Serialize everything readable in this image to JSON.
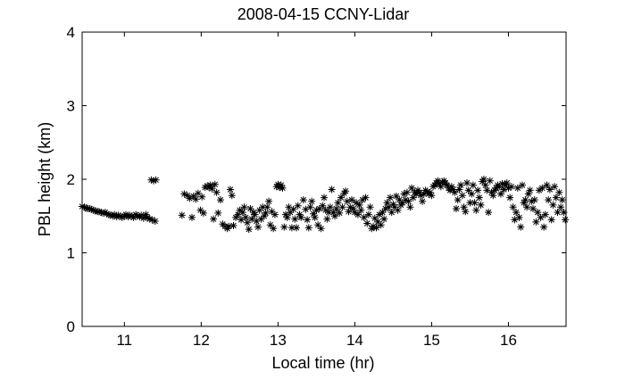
{
  "chart_data": {
    "type": "scatter",
    "title": "2008-04-15 CCNY-Lidar",
    "xlabel": "Local time (hr)",
    "ylabel": "PBL height (km)",
    "xlim": [
      10.45,
      16.75
    ],
    "ylim": [
      0,
      4
    ],
    "xticks": [
      "11",
      "12",
      "13",
      "14",
      "15",
      "16"
    ],
    "yticks": [
      "0",
      "1",
      "2",
      "3",
      "4"
    ],
    "marker": "asterisk",
    "color": "#000000",
    "grid": false,
    "series": [
      {
        "points": [
          [
            10.45,
            1.63
          ],
          [
            10.48,
            1.62
          ],
          [
            10.5,
            1.61
          ],
          [
            10.52,
            1.6
          ],
          [
            10.55,
            1.6
          ],
          [
            10.57,
            1.59
          ],
          [
            10.6,
            1.58
          ],
          [
            10.62,
            1.57
          ],
          [
            10.65,
            1.56
          ],
          [
            10.67,
            1.56
          ],
          [
            10.7,
            1.55
          ],
          [
            10.72,
            1.54
          ],
          [
            10.75,
            1.55
          ],
          [
            10.77,
            1.53
          ],
          [
            10.8,
            1.52
          ],
          [
            10.82,
            1.51
          ],
          [
            10.85,
            1.5
          ],
          [
            10.87,
            1.52
          ],
          [
            10.9,
            1.49
          ],
          [
            10.92,
            1.51
          ],
          [
            10.95,
            1.5
          ],
          [
            10.97,
            1.48
          ],
          [
            11.0,
            1.5
          ],
          [
            11.02,
            1.52
          ],
          [
            11.05,
            1.49
          ],
          [
            11.07,
            1.51
          ],
          [
            11.1,
            1.5
          ],
          [
            11.12,
            1.48
          ],
          [
            11.15,
            1.52
          ],
          [
            11.17,
            1.5
          ],
          [
            11.2,
            1.49
          ],
          [
            11.22,
            1.51
          ],
          [
            11.25,
            1.47
          ],
          [
            11.28,
            1.52
          ],
          [
            11.3,
            1.48
          ],
          [
            11.33,
            1.46
          ],
          [
            11.36,
            1.45
          ],
          [
            11.4,
            1.43
          ],
          [
            11.35,
            1.99
          ],
          [
            11.38,
            1.98
          ],
          [
            11.41,
            1.99
          ],
          [
            11.75,
            1.51
          ],
          [
            11.78,
            1.8
          ],
          [
            11.82,
            1.78
          ],
          [
            11.85,
            1.74
          ],
          [
            11.88,
            1.48
          ],
          [
            11.9,
            1.77
          ],
          [
            11.93,
            1.73
          ],
          [
            11.96,
            1.81
          ],
          [
            11.99,
            1.58
          ],
          [
            12.01,
            1.76
          ],
          [
            12.03,
            1.54
          ],
          [
            12.05,
            1.89
          ],
          [
            12.08,
            1.91
          ],
          [
            12.1,
            1.89
          ],
          [
            12.12,
            1.92
          ],
          [
            12.14,
            1.87
          ],
          [
            12.16,
            1.46
          ],
          [
            12.18,
            1.93
          ],
          [
            12.2,
            1.82
          ],
          [
            12.22,
            1.54
          ],
          [
            12.25,
            1.72
          ],
          [
            12.28,
            1.39
          ],
          [
            12.31,
            1.36
          ],
          [
            12.34,
            1.33
          ],
          [
            12.36,
            1.36
          ],
          [
            12.38,
            1.86
          ],
          [
            12.4,
            1.78
          ],
          [
            12.42,
            1.37
          ],
          [
            12.45,
            1.48
          ],
          [
            12.48,
            1.52
          ],
          [
            12.5,
            1.58
          ],
          [
            12.52,
            1.45
          ],
          [
            12.54,
            1.55
          ],
          [
            12.56,
            1.62
          ],
          [
            12.58,
            1.48
          ],
          [
            12.6,
            1.41
          ],
          [
            12.62,
            1.32
          ],
          [
            12.64,
            1.6
          ],
          [
            12.66,
            1.46
          ],
          [
            12.68,
            1.55
          ],
          [
            12.7,
            1.52
          ],
          [
            12.72,
            1.43
          ],
          [
            12.74,
            1.35
          ],
          [
            12.76,
            1.58
          ],
          [
            12.78,
            1.46
          ],
          [
            12.8,
            1.62
          ],
          [
            12.82,
            1.5
          ],
          [
            12.84,
            1.54
          ],
          [
            12.86,
            1.62
          ],
          [
            12.88,
            1.7
          ],
          [
            12.9,
            1.38
          ],
          [
            12.92,
            1.56
          ],
          [
            12.94,
            1.33
          ],
          [
            12.96,
            1.52
          ],
          [
            12.98,
            1.9
          ],
          [
            13.0,
            1.93
          ],
          [
            13.02,
            1.89
          ],
          [
            13.04,
            1.92
          ],
          [
            13.06,
            1.88
          ],
          [
            13.08,
            1.35
          ],
          [
            13.1,
            1.52
          ],
          [
            13.12,
            1.48
          ],
          [
            13.14,
            1.62
          ],
          [
            13.16,
            1.55
          ],
          [
            13.18,
            1.34
          ],
          [
            13.2,
            1.59
          ],
          [
            13.22,
            1.46
          ],
          [
            13.24,
            1.34
          ],
          [
            13.26,
            1.64
          ],
          [
            13.28,
            1.52
          ],
          [
            13.3,
            1.48
          ],
          [
            13.33,
            1.72
          ],
          [
            13.36,
            1.59
          ],
          [
            13.38,
            1.45
          ],
          [
            13.4,
            1.34
          ],
          [
            13.42,
            1.62
          ],
          [
            13.44,
            1.7
          ],
          [
            13.46,
            1.53
          ],
          [
            13.48,
            1.48
          ],
          [
            13.5,
            1.58
          ],
          [
            13.52,
            1.38
          ],
          [
            13.54,
            1.6
          ],
          [
            13.56,
            1.33
          ],
          [
            13.58,
            1.64
          ],
          [
            13.6,
            1.75
          ],
          [
            13.62,
            1.58
          ],
          [
            13.64,
            1.46
          ],
          [
            13.66,
            1.55
          ],
          [
            13.68,
            1.62
          ],
          [
            13.7,
            1.86
          ],
          [
            13.72,
            1.55
          ],
          [
            13.74,
            1.5
          ],
          [
            13.76,
            1.6
          ],
          [
            13.78,
            1.68
          ],
          [
            13.8,
            1.54
          ],
          [
            13.82,
            1.75
          ],
          [
            13.84,
            1.62
          ],
          [
            13.86,
            1.81
          ],
          [
            13.88,
            1.84
          ],
          [
            13.9,
            1.7
          ],
          [
            13.92,
            1.56
          ],
          [
            13.94,
            1.62
          ],
          [
            13.96,
            1.72
          ],
          [
            13.98,
            1.6
          ],
          [
            14.0,
            1.55
          ],
          [
            14.02,
            1.68
          ],
          [
            14.04,
            1.52
          ],
          [
            14.06,
            1.65
          ],
          [
            14.08,
            1.58
          ],
          [
            14.1,
            1.72
          ],
          [
            14.12,
            1.48
          ],
          [
            14.14,
            1.75
          ],
          [
            14.16,
            1.4
          ],
          [
            14.18,
            1.52
          ],
          [
            14.2,
            1.62
          ],
          [
            14.22,
            1.33
          ],
          [
            14.24,
            1.36
          ],
          [
            14.26,
            1.47
          ],
          [
            14.28,
            1.34
          ],
          [
            14.3,
            1.42
          ],
          [
            14.32,
            1.52
          ],
          [
            14.34,
            1.38
          ],
          [
            14.36,
            1.55
          ],
          [
            14.38,
            1.46
          ],
          [
            14.4,
            1.6
          ],
          [
            14.42,
            1.68
          ],
          [
            14.44,
            1.62
          ],
          [
            14.46,
            1.75
          ],
          [
            14.48,
            1.55
          ],
          [
            14.5,
            1.66
          ],
          [
            14.52,
            1.62
          ],
          [
            14.54,
            1.77
          ],
          [
            14.56,
            1.58
          ],
          [
            14.58,
            1.72
          ],
          [
            14.6,
            1.65
          ],
          [
            14.62,
            1.68
          ],
          [
            14.64,
            1.8
          ],
          [
            14.66,
            1.72
          ],
          [
            14.68,
            1.82
          ],
          [
            14.7,
            1.7
          ],
          [
            14.72,
            1.62
          ],
          [
            14.74,
            1.88
          ],
          [
            14.76,
            1.75
          ],
          [
            14.78,
            1.82
          ],
          [
            14.8,
            1.8
          ],
          [
            14.82,
            1.85
          ],
          [
            14.84,
            1.82
          ],
          [
            14.86,
            1.78
          ],
          [
            14.88,
            1.7
          ],
          [
            14.9,
            1.8
          ],
          [
            14.92,
            1.85
          ],
          [
            14.94,
            1.83
          ],
          [
            14.96,
            1.8
          ],
          [
            14.98,
            1.82
          ],
          [
            15.0,
            1.78
          ],
          [
            15.02,
            1.9
          ],
          [
            15.04,
            1.92
          ],
          [
            15.06,
            1.95
          ],
          [
            15.08,
            1.98
          ],
          [
            15.1,
            1.94
          ],
          [
            15.12,
            1.9
          ],
          [
            15.14,
            1.96
          ],
          [
            15.16,
            1.98
          ],
          [
            15.18,
            1.95
          ],
          [
            15.2,
            1.92
          ],
          [
            15.22,
            1.88
          ],
          [
            15.24,
            1.85
          ],
          [
            15.26,
            1.9
          ],
          [
            15.28,
            1.86
          ],
          [
            15.3,
            1.82
          ],
          [
            15.32,
            1.6
          ],
          [
            15.34,
            1.72
          ],
          [
            15.36,
            1.86
          ],
          [
            15.38,
            1.92
          ],
          [
            15.4,
            1.78
          ],
          [
            15.42,
            1.62
          ],
          [
            15.44,
            1.56
          ],
          [
            15.46,
            1.95
          ],
          [
            15.48,
            1.85
          ],
          [
            15.5,
            1.68
          ],
          [
            15.52,
            1.8
          ],
          [
            15.54,
            1.92
          ],
          [
            15.56,
            1.68
          ],
          [
            15.58,
            1.58
          ],
          [
            15.6,
            1.85
          ],
          [
            15.62,
            1.75
          ],
          [
            15.64,
            1.65
          ],
          [
            15.66,
            1.97
          ],
          [
            15.68,
            2.0
          ],
          [
            15.7,
            1.92
          ],
          [
            15.72,
            1.85
          ],
          [
            15.74,
            1.55
          ],
          [
            15.76,
            1.98
          ],
          [
            15.78,
            1.82
          ],
          [
            15.8,
            1.78
          ],
          [
            15.82,
            1.85
          ],
          [
            15.84,
            1.88
          ],
          [
            15.86,
            1.92
          ],
          [
            15.88,
            1.9
          ],
          [
            15.9,
            1.8
          ],
          [
            15.92,
            1.94
          ],
          [
            15.94,
            1.86
          ],
          [
            15.96,
            1.92
          ],
          [
            15.98,
            1.95
          ],
          [
            16.0,
            1.88
          ],
          [
            16.02,
            1.75
          ],
          [
            16.04,
            1.9
          ],
          [
            16.06,
            1.62
          ],
          [
            16.08,
            1.45
          ],
          [
            16.1,
            1.55
          ],
          [
            16.12,
            1.88
          ],
          [
            16.14,
            1.48
          ],
          [
            16.16,
            1.35
          ],
          [
            16.18,
            1.92
          ],
          [
            16.2,
            1.68
          ],
          [
            16.22,
            1.72
          ],
          [
            16.24,
            1.62
          ],
          [
            16.26,
            1.8
          ],
          [
            16.28,
            1.85
          ],
          [
            16.3,
            1.7
          ],
          [
            16.32,
            1.6
          ],
          [
            16.34,
            1.72
          ],
          [
            16.36,
            1.42
          ],
          [
            16.38,
            1.55
          ],
          [
            16.4,
            1.85
          ],
          [
            16.42,
            1.48
          ],
          [
            16.44,
            1.88
          ],
          [
            16.46,
            1.35
          ],
          [
            16.48,
            1.52
          ],
          [
            16.5,
            1.92
          ],
          [
            16.52,
            1.72
          ],
          [
            16.54,
            1.86
          ],
          [
            16.56,
            1.45
          ],
          [
            16.58,
            1.65
          ],
          [
            16.6,
            1.9
          ],
          [
            16.62,
            1.75
          ],
          [
            16.64,
            1.55
          ],
          [
            16.66,
            1.82
          ],
          [
            16.68,
            1.62
          ],
          [
            16.7,
            1.72
          ],
          [
            16.72,
            1.55
          ],
          [
            16.74,
            1.45
          ]
        ]
      }
    ]
  }
}
